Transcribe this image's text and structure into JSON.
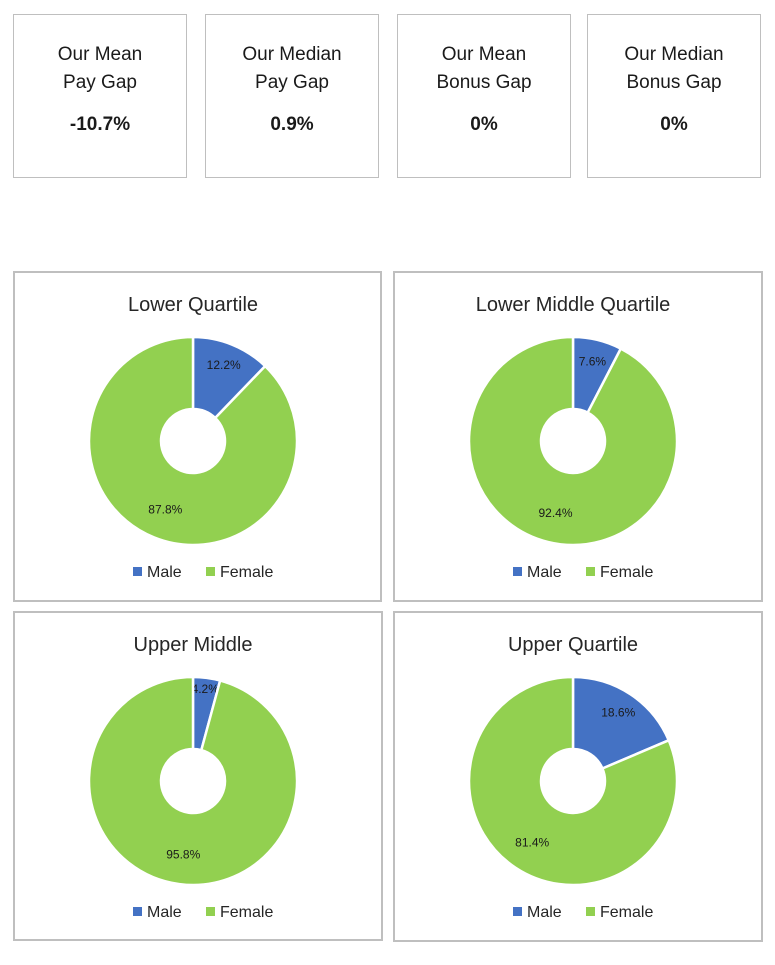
{
  "stats": [
    {
      "label_lines": [
        "Our Mean",
        "Pay Gap"
      ],
      "value": "-10.7%"
    },
    {
      "label_lines": [
        "Our Median",
        "Pay Gap"
      ],
      "value": "0.9%"
    },
    {
      "label_lines": [
        "Our Mean",
        "Bonus Gap"
      ],
      "value": "0%"
    },
    {
      "label_lines": [
        "Our Median",
        "Bonus Gap"
      ],
      "value": "0%"
    }
  ],
  "legend": [
    "Male",
    "Female"
  ],
  "colors": {
    "male": "#4472c4",
    "female": "#92d050",
    "border": "#bfbfbf"
  },
  "chart_data": [
    {
      "type": "pie",
      "donut": true,
      "title": "Lower Quartile",
      "categories": [
        "Male",
        "Female"
      ],
      "values": [
        12.2,
        87.8
      ],
      "labels": [
        "12.2%",
        "87.8%"
      ],
      "legend_position": "bottom"
    },
    {
      "type": "pie",
      "donut": true,
      "title": "Lower Middle Quartile",
      "categories": [
        "Male",
        "Female"
      ],
      "values": [
        7.6,
        92.4
      ],
      "labels": [
        "7.6%",
        "92.4%"
      ],
      "legend_position": "bottom"
    },
    {
      "type": "pie",
      "donut": true,
      "title": "Upper Middle",
      "categories": [
        "Male",
        "Female"
      ],
      "values": [
        4.2,
        95.8
      ],
      "labels": [
        "4.2%",
        "95.8%"
      ],
      "legend_position": "bottom"
    },
    {
      "type": "pie",
      "donut": true,
      "title": "Upper Quartile",
      "categories": [
        "Male",
        "Female"
      ],
      "values": [
        18.6,
        81.4
      ],
      "labels": [
        "18.6%",
        "81.4%"
      ],
      "legend_position": "bottom"
    }
  ]
}
